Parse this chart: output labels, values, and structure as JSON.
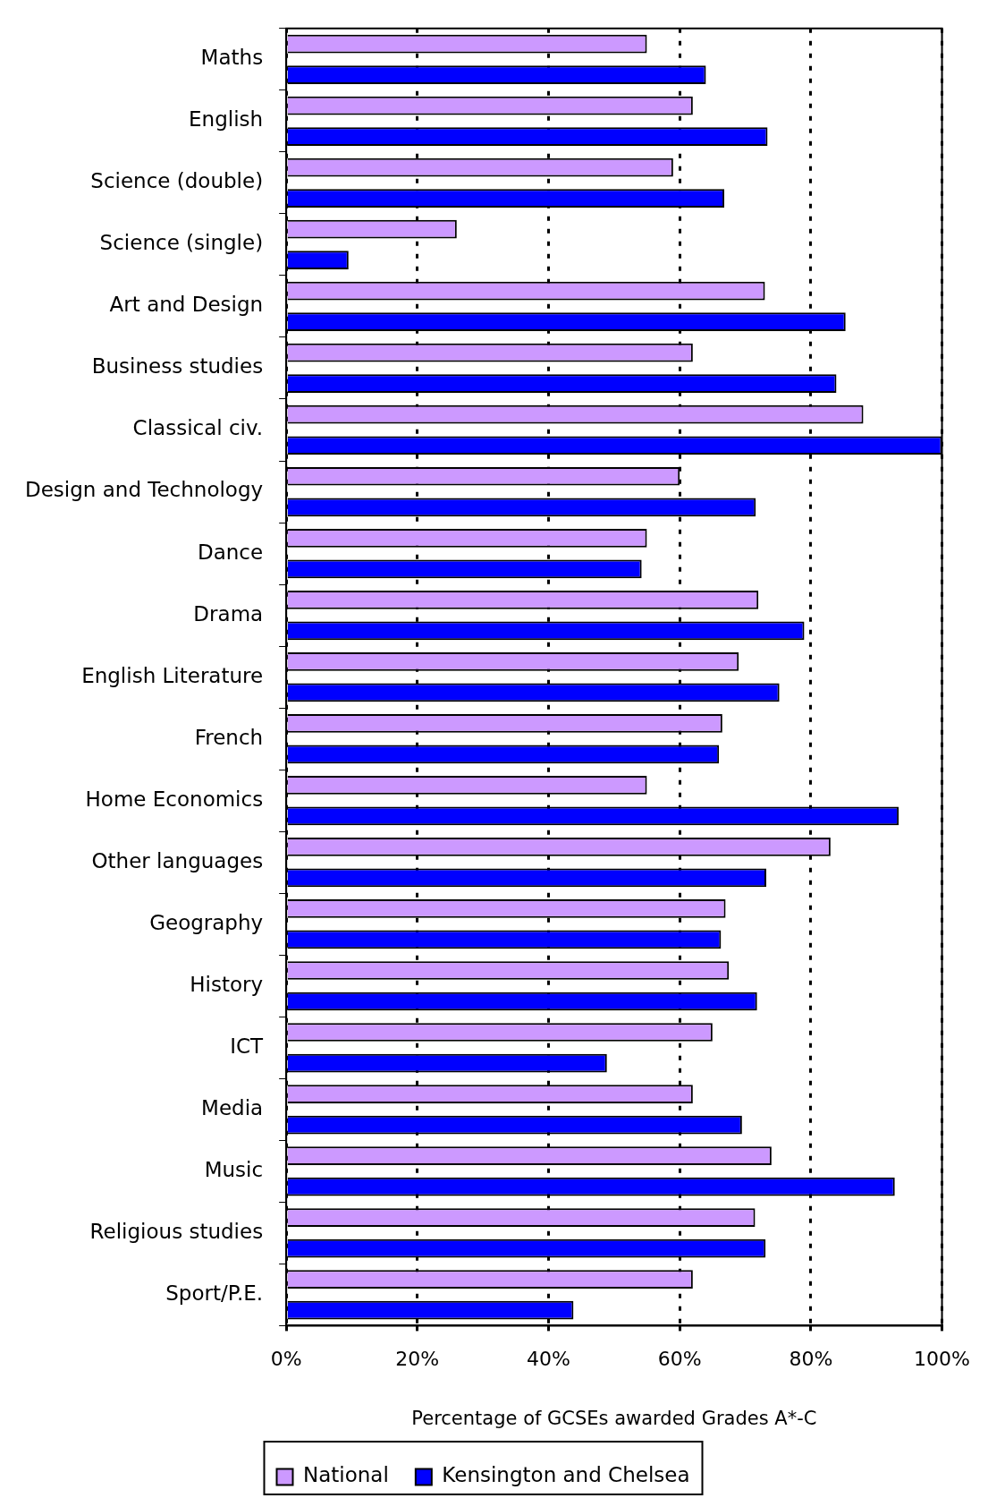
{
  "chart_data": {
    "type": "bar",
    "orientation": "horizontal",
    "xlabel": "Percentage of GCSEs awarded Grades A*-C",
    "categories": [
      "Maths",
      "English",
      "Science (double)",
      "Science (single)",
      "Art and Design",
      "Business studies",
      "Classical civ.",
      "Design and Technology",
      "Dance",
      "Drama",
      "English Literature",
      "French",
      "Home Economics",
      "Other languages",
      "Geography",
      "History",
      "ICT",
      "Media",
      "Music",
      "Religious studies",
      "Sport/P.E."
    ],
    "series": [
      {
        "name": "National",
        "color": "#cc99ff",
        "values": [
          55,
          62,
          59,
          26,
          73,
          62,
          88,
          60,
          55,
          72,
          69,
          66.5,
          55,
          83,
          67,
          67.5,
          65,
          62,
          74,
          71.5,
          62
        ]
      },
      {
        "name": "Kensington and Chelsea",
        "color": "#0000ff",
        "values": [
          64,
          73.4,
          66.8,
          9.5,
          85.3,
          83.9,
          100,
          71.6,
          54.2,
          79,
          75.2,
          66,
          93.4,
          73.2,
          66.3,
          71.8,
          48.9,
          69.5,
          92.8,
          73.1,
          43.8
        ]
      }
    ],
    "xlim": [
      0,
      100
    ],
    "xticks": [
      {
        "value": 0,
        "label": "0%"
      },
      {
        "value": 20,
        "label": "20%"
      },
      {
        "value": 40,
        "label": "40%"
      },
      {
        "value": 60,
        "label": "60%"
      },
      {
        "value": 80,
        "label": "80%"
      },
      {
        "value": 100,
        "label": "100%"
      }
    ],
    "grid": "x",
    "legend": "bottom"
  }
}
